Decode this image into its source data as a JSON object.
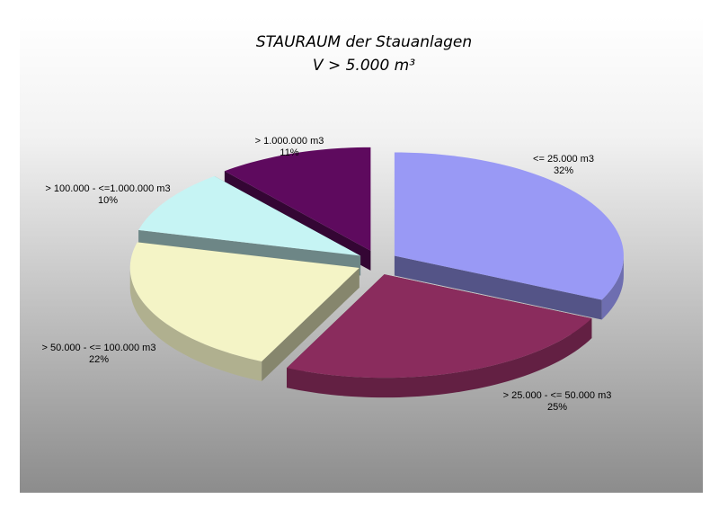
{
  "chart_data": {
    "type": "pie3d",
    "title": "STAURAUM der Stauanlagen",
    "subtitle": "V > 5.000 m³",
    "categories": [
      "<= 25.000 m3",
      "> 25.000 - <= 50.000 m3",
      "> 50.000 - <= 100.000 m3",
      "> 100.000 - <=1.000.000 m3",
      "> 1.000.000 m3"
    ],
    "values": [
      32,
      25,
      22,
      10,
      11
    ],
    "value_labels": [
      "32%",
      "25%",
      "22%",
      "10%",
      "11%"
    ],
    "colors": [
      "#9999f5",
      "#8a2c5d",
      "#f4f4c6",
      "#c6f4f4",
      "#5e0a5e"
    ]
  }
}
